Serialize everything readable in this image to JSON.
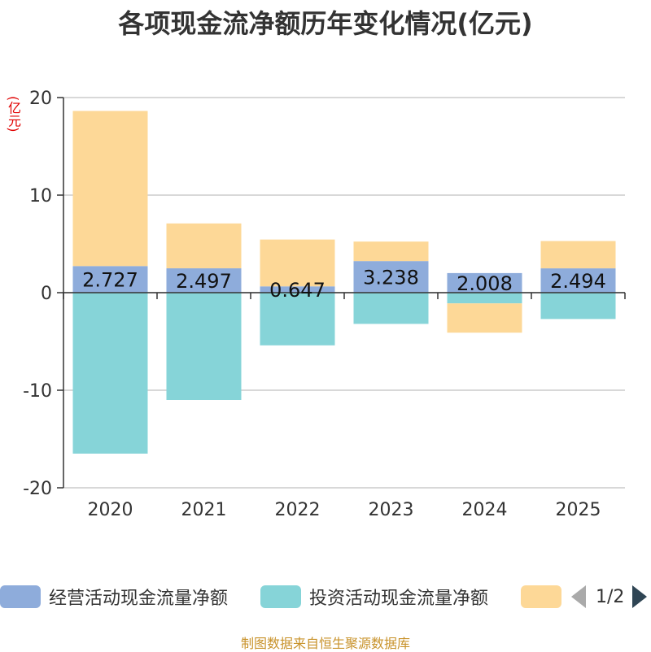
{
  "title": "各项现金流净额历年变化情况(亿元)",
  "unit_label": "(亿元)",
  "source": "制图数据来自恒生聚源数据库",
  "pager": {
    "text": "1/2"
  },
  "chart_data": {
    "type": "bar",
    "stacked": true,
    "title": "各项现金流净额历年变化情况(亿元)",
    "ylabel": "(亿元)",
    "categories": [
      "2020",
      "2021",
      "2022",
      "2023",
      "2024",
      "2025"
    ],
    "ylim": [
      -20,
      20
    ],
    "yticks": [
      20,
      10,
      0,
      -10,
      -20
    ],
    "series": [
      {
        "name": "经营活动现金流量净额",
        "color": "#8eacdb",
        "values": [
          2.727,
          2.497,
          0.647,
          3.238,
          2.008,
          2.494
        ],
        "labels": [
          "2.727",
          "2.497",
          "0.647",
          "3.238",
          "2.008",
          "2.494"
        ]
      },
      {
        "name": "投资活动现金流量净额",
        "color": "#86d4d8",
        "values": [
          -16.5,
          -11.0,
          -5.4,
          -3.2,
          -1.1,
          -2.7
        ]
      },
      {
        "name": "",
        "color": "#fdd897",
        "values": [
          15.9,
          4.6,
          4.8,
          2.0,
          -3.0,
          2.8
        ]
      }
    ],
    "legend": [
      {
        "name": "经营活动现金流量净额",
        "color": "#8eacdb"
      },
      {
        "name": "投资活动现金流量净额",
        "color": "#86d4d8"
      },
      {
        "name": "",
        "color": "#fdd897"
      }
    ]
  }
}
